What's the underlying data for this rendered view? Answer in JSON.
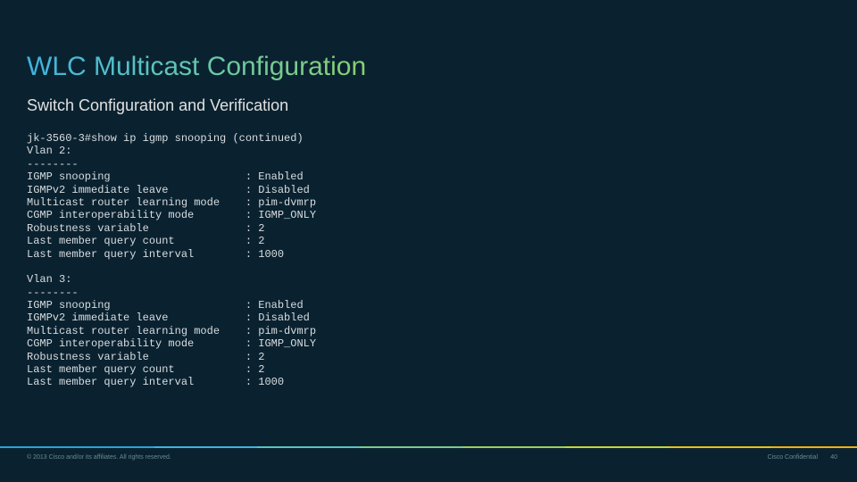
{
  "slide": {
    "title": "WLC Multicast Configuration",
    "subtitle": "Switch Configuration and Verification",
    "background_color": "#0a2230",
    "title_gradient": [
      "#3fb3e0",
      "#5ac3c0",
      "#8bd070"
    ],
    "title_fontsize": 30,
    "subtitle_fontsize": 18,
    "text_color": "#d8dde0"
  },
  "terminal": {
    "font_family": "Courier New",
    "font_size": 12,
    "color": "#d8dde0",
    "command": "jk-3560-3#show ip igmp snooping (continued)",
    "label_col_width": 34,
    "vlans": [
      {
        "header": "Vlan 2:",
        "divider": "--------",
        "rows": [
          {
            "label": "IGMP snooping",
            "value": "Enabled"
          },
          {
            "label": "IGMPv2 immediate leave",
            "value": "Disabled"
          },
          {
            "label": "Multicast router learning mode",
            "value": "pim-dvmrp"
          },
          {
            "label": "CGMP interoperability mode",
            "value": "IGMP_ONLY"
          },
          {
            "label": "Robustness variable",
            "value": "2"
          },
          {
            "label": "Last member query count",
            "value": "2"
          },
          {
            "label": "Last member query interval",
            "value": "1000"
          }
        ]
      },
      {
        "header": "Vlan 3:",
        "divider": "--------",
        "rows": [
          {
            "label": "IGMP snooping",
            "value": "Enabled"
          },
          {
            "label": "IGMPv2 immediate leave",
            "value": "Disabled"
          },
          {
            "label": "Multicast router learning mode",
            "value": "pim-dvmrp"
          },
          {
            "label": "CGMP interoperability mode",
            "value": "IGMP_ONLY"
          },
          {
            "label": "Robustness variable",
            "value": "2"
          },
          {
            "label": "Last member query count",
            "value": "2"
          },
          {
            "label": "Last member query interval",
            "value": "1000"
          }
        ]
      }
    ]
  },
  "footer": {
    "copyright": "© 2013  Cisco and/or its affiliates. All rights reserved.",
    "confidential": "Cisco Confidential",
    "page_number": "40",
    "gradient_stops": [
      "#2aa3d8",
      "#3fb3e0",
      "#5ac3c0",
      "#7cca8c",
      "#9bd15a",
      "#c6d63a",
      "#e6c218",
      "#f0b010"
    ],
    "text_color": "#6a8895",
    "font_size": 7
  }
}
